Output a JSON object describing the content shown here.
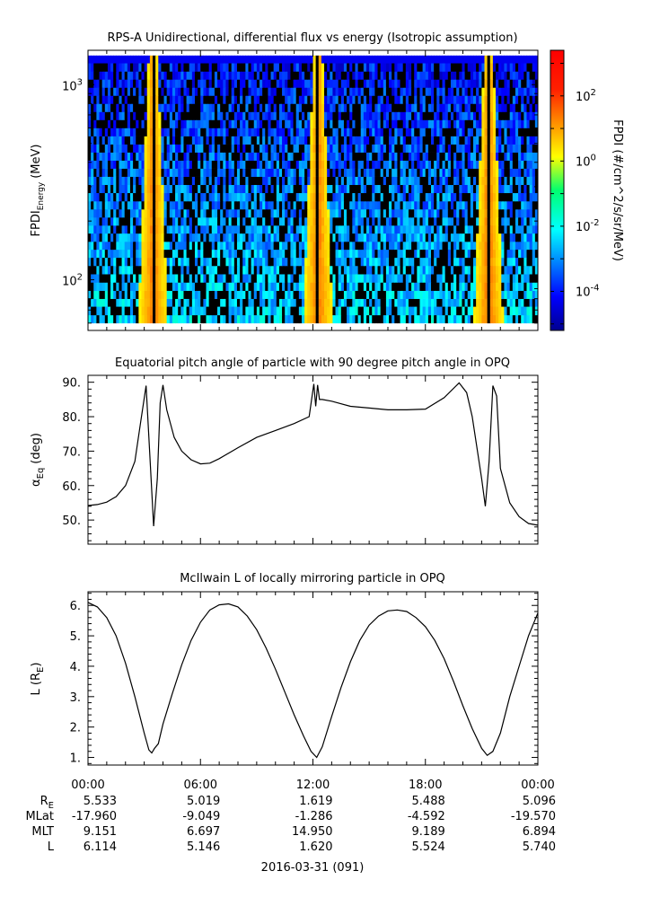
{
  "chart_data": [
    {
      "type": "heatmap",
      "title": "RPS-A Unidirectional, differential flux vs energy (Isotropic assumption)",
      "ylabel_main": "FPDI",
      "ylabel_sub": "Energy",
      "ylabel_unit": "(MeV)",
      "yscale": "log",
      "ylim": [
        55,
        1500
      ],
      "yticks": [
        {
          "v": 100,
          "base": "10",
          "exp": "2"
        },
        {
          "v": 1000,
          "base": "10",
          "exp": "3"
        }
      ],
      "xlim_hours": [
        0,
        24
      ],
      "colorbar": {
        "label": "FPDI (#/cm^2/s/sr/MeV)",
        "scale": "log",
        "range_log10": [
          -5.2,
          3.4
        ],
        "ticks": [
          {
            "v": -4,
            "base": "10",
            "exp": "-4"
          },
          {
            "v": -2,
            "base": "10",
            "exp": "-2"
          },
          {
            "v": 0,
            "base": "10",
            "exp": "0"
          },
          {
            "v": 2,
            "base": "10",
            "exp": "2"
          }
        ],
        "colormap": "rainbow"
      },
      "energy_bins_mev": [
        60,
        66,
        73,
        80,
        88,
        97,
        107,
        118,
        130,
        143,
        157,
        173,
        190,
        209,
        230,
        253,
        279,
        307,
        338,
        372,
        409,
        450,
        495,
        545,
        600,
        660,
        726,
        799,
        879,
        967,
        1064,
        1170,
        1290,
        1410
      ],
      "perigee_hours": [
        3.4,
        12.2,
        21.3
      ]
    },
    {
      "type": "line",
      "title": "Equatorial pitch angle of particle with 90 degree pitch angle in OPQ",
      "ylabel_greek": "α",
      "ylabel_sub": "Eq",
      "ylabel_unit": "(deg)",
      "ylim": [
        43,
        92
      ],
      "yticks": [
        50,
        60,
        70,
        80,
        90
      ],
      "x_hours": [
        0,
        0.5,
        1,
        1.5,
        2,
        2.5,
        2.8,
        3.1,
        3.25,
        3.5,
        3.7,
        3.85,
        4.0,
        4.2,
        4.6,
        5,
        5.5,
        6,
        6.5,
        7,
        8,
        9,
        10,
        11,
        11.8,
        12.05,
        12.15,
        12.25,
        12.35,
        12.5,
        13,
        14,
        15,
        16,
        17,
        18,
        19,
        19.8,
        20.2,
        20.5,
        21.0,
        21.2,
        21.4,
        21.6,
        21.8,
        22,
        22.5,
        23,
        23.5,
        24
      ],
      "values": [
        54.2,
        54.5,
        55.2,
        56.8,
        60,
        67,
        78,
        89,
        74,
        48.2,
        62,
        84,
        89.2,
        82,
        74,
        70,
        67.5,
        66.3,
        66.5,
        67.8,
        71,
        74,
        76,
        78,
        80,
        89.5,
        83,
        89.2,
        85,
        85,
        84.5,
        83,
        82.5,
        82,
        82,
        82.2,
        85.5,
        89.8,
        87,
        80,
        62,
        54,
        67,
        89,
        86,
        65,
        55,
        51,
        49,
        48.5
      ]
    },
    {
      "type": "line",
      "title": "McIlwain L of locally mirroring particle in OPQ",
      "ylabel": "L (R",
      "ylabel_sub": "E",
      "ylabel_close": ")",
      "ylim": [
        0.75,
        6.45
      ],
      "yticks": [
        1,
        2,
        3,
        4,
        5,
        6
      ],
      "x_hours": [
        0,
        0.5,
        1,
        1.5,
        2,
        2.5,
        3.0,
        3.25,
        3.4,
        3.55,
        3.75,
        4.0,
        4.5,
        5,
        5.5,
        6,
        6.5,
        7,
        7.5,
        8,
        8.5,
        9,
        9.5,
        10,
        10.5,
        11,
        11.5,
        11.9,
        12.2,
        12.5,
        13,
        13.5,
        14,
        14.5,
        15,
        15.5,
        16,
        16.5,
        17,
        17.5,
        18,
        18.5,
        19,
        19.5,
        20,
        20.5,
        21,
        21.3,
        21.6,
        22,
        22.5,
        23,
        23.5,
        24
      ],
      "values": [
        6.1,
        5.95,
        5.6,
        5.0,
        4.1,
        3.0,
        1.8,
        1.25,
        1.15,
        1.3,
        1.45,
        2.1,
        3.1,
        4.05,
        4.85,
        5.45,
        5.85,
        6.02,
        6.05,
        5.95,
        5.65,
        5.2,
        4.6,
        3.9,
        3.15,
        2.4,
        1.7,
        1.2,
        1.0,
        1.35,
        2.35,
        3.3,
        4.15,
        4.85,
        5.35,
        5.65,
        5.82,
        5.85,
        5.8,
        5.6,
        5.3,
        4.85,
        4.25,
        3.5,
        2.7,
        1.95,
        1.3,
        1.07,
        1.2,
        1.8,
        3.0,
        4.0,
        5.0,
        5.75
      ]
    }
  ],
  "time_axis": {
    "tick_labels": [
      "00:00",
      "06:00",
      "12:00",
      "18:00",
      "00:00"
    ],
    "tick_hours": [
      0,
      6,
      12,
      18,
      24
    ],
    "minor_step_hours": 1,
    "date_label": "2016-03-31 (091)"
  },
  "ephemeris": {
    "row_labels": [
      "R",
      "MLat",
      "MLT",
      "L"
    ],
    "re_label_sub": "E",
    "columns": [
      [
        "5.533",
        "5.019",
        "1.619",
        "5.488",
        "5.096"
      ],
      [
        "-17.960",
        "-9.049",
        "-1.286",
        "-4.592",
        "-19.570"
      ],
      [
        "9.151",
        "6.697",
        "14.950",
        "9.189",
        "6.894"
      ],
      [
        "6.114",
        "5.146",
        "1.620",
        "5.524",
        "5.740"
      ]
    ]
  },
  "colors": {
    "axis": "#000000",
    "line": "#000000",
    "background": "#ffffff"
  }
}
